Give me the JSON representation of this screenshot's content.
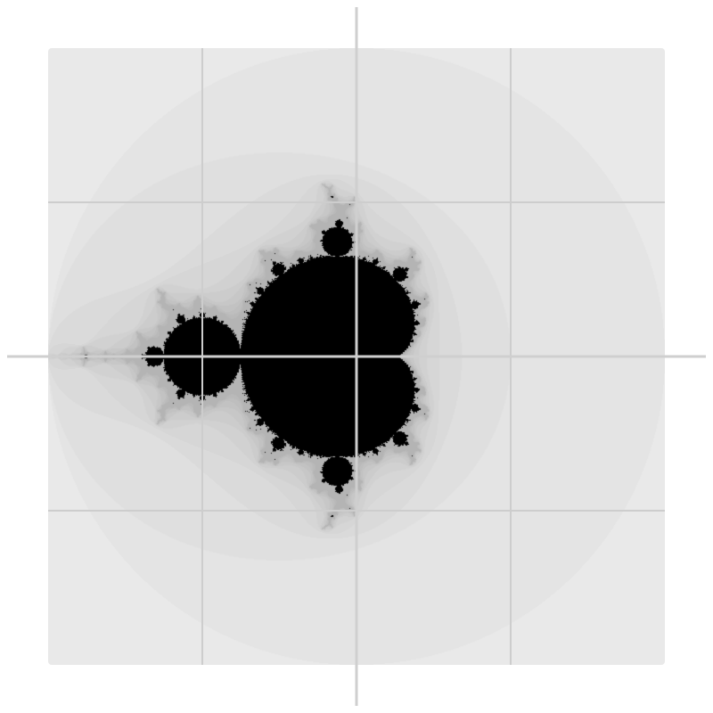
{
  "fractal": {
    "kind": "mandelbrot",
    "real_range": [
      -2.0,
      2.0
    ],
    "imag_range": [
      -2.0,
      2.0
    ],
    "escape_bands": 10,
    "max_iterations": 120,
    "colors": {
      "outer": "#e9e9e9",
      "band_light": "#e4e4e4",
      "band_dark": "#b4b4b4",
      "set": "#000000",
      "grid": "#cdcdcd",
      "axes": "#cfcfcf"
    }
  },
  "grid": {
    "real_ticks": [
      -1.0,
      0.0,
      1.0
    ],
    "imag_ticks": [
      -1.0,
      1.0
    ],
    "axis_real": 0.0,
    "axis_imag": 0.0
  }
}
